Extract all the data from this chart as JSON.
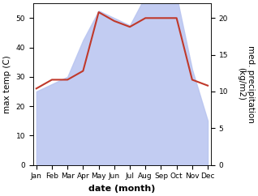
{
  "months": [
    "Jan",
    "Feb",
    "Mar",
    "Apr",
    "May",
    "Jun",
    "Jul",
    "Aug",
    "Sep",
    "Oct",
    "Nov",
    "Dec"
  ],
  "temp_max": [
    26,
    29,
    29,
    32,
    52,
    49,
    47,
    50,
    50,
    50,
    29,
    27
  ],
  "precip": [
    10,
    11,
    12,
    17,
    21,
    20,
    19,
    23,
    23,
    23,
    13,
    6
  ],
  "temp_color": "#c0392b",
  "precip_fill_color": "#b8c4f0",
  "ylabel_left": "max temp (C)",
  "ylabel_right": "med. precipitation\n(kg/m2)",
  "xlabel": "date (month)",
  "ylim_left": [
    0,
    55
  ],
  "ylim_right": [
    0,
    22
  ],
  "yticks_left": [
    0,
    10,
    20,
    30,
    40,
    50
  ],
  "yticks_right": [
    0,
    5,
    10,
    15,
    20
  ],
  "bg_color": "#ffffff",
  "axis_fontsize": 7.5,
  "tick_fontsize": 6.5,
  "xlabel_fontsize": 8
}
